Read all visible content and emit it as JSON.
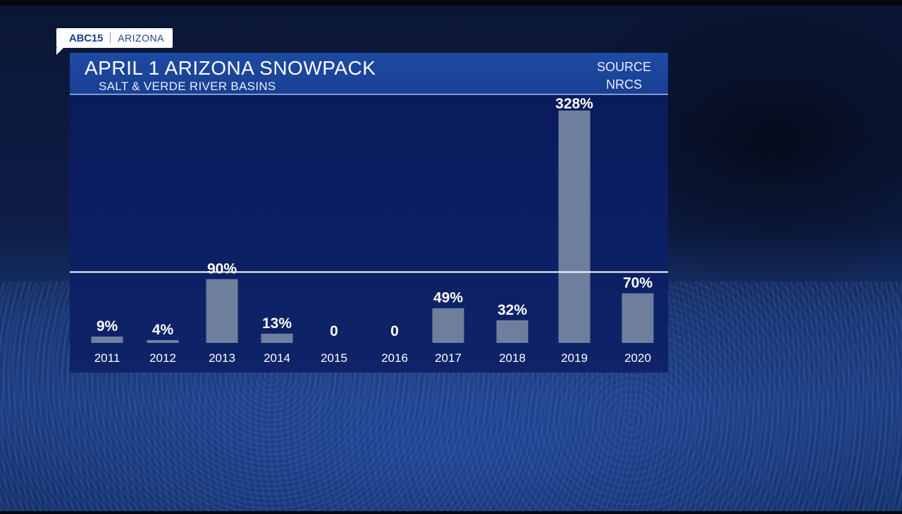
{
  "bug": {
    "brand": "ABC15",
    "location": "ARIZONA"
  },
  "chart_data": {
    "type": "bar",
    "title": "APRIL 1 ARIZONA SNOWPACK",
    "subtitle": "SALT & VERDE RIVER BASINS",
    "source_line1": "SOURCE",
    "source_line2": "NRCS",
    "categories": [
      "2011",
      "2012",
      "2013",
      "2014",
      "2015",
      "2016",
      "2017",
      "2018",
      "2019",
      "2020"
    ],
    "values": [
      9,
      4,
      90,
      13,
      0,
      0,
      49,
      32,
      328,
      70
    ],
    "value_labels": [
      "9%",
      "4%",
      "90%",
      "13%",
      "0",
      "0",
      "49%",
      "32%",
      "328%",
      "70%"
    ],
    "reference_line": 100,
    "ylim": [
      0,
      328
    ],
    "colors": {
      "bar": "#6e7f9e",
      "reference_line": "#ffffff",
      "header": "#1e4aa3",
      "panel": "#0c1f63"
    }
  }
}
